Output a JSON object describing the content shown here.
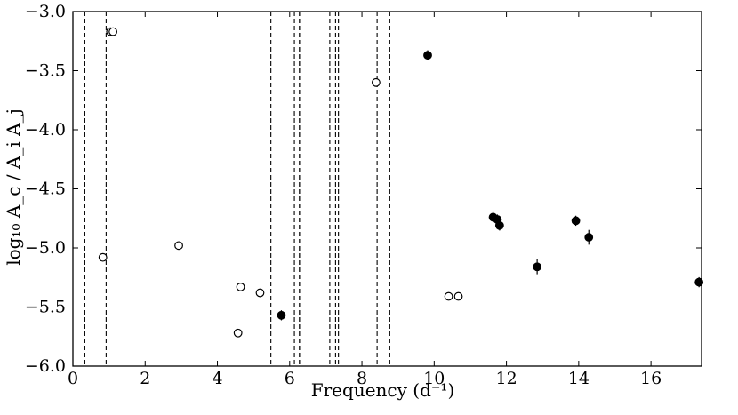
{
  "chart_data": {
    "type": "scatter",
    "title": "",
    "xlabel": "Frequency (d⁻¹)",
    "ylabel": "log₁₀ A_c / A_i A_j",
    "xlim": [
      0,
      17.4
    ],
    "ylim": [
      -6.0,
      -3.0
    ],
    "xticks": [
      0,
      2,
      4,
      6,
      8,
      10,
      12,
      14,
      16
    ],
    "yticks": [
      -3.0,
      -3.5,
      -4.0,
      -4.5,
      -5.0,
      -5.5,
      -6.0
    ],
    "xtick_labels": [
      "0",
      "2",
      "4",
      "6",
      "8",
      "10",
      "12",
      "14",
      "16"
    ],
    "ytick_labels": [
      "−3.0",
      "−3.5",
      "−4.0",
      "−4.5",
      "−5.0",
      "−5.5",
      "−6.0"
    ],
    "grid": false,
    "vertical_lines": [
      0.33,
      0.92,
      5.48,
      6.13,
      6.27,
      6.31,
      7.11,
      7.27,
      7.35,
      8.42,
      8.77
    ],
    "series": [
      {
        "marker": "open-circle",
        "points": [
          {
            "x": 0.83,
            "y": -5.08
          },
          {
            "x": 1.04,
            "y": -3.17
          },
          {
            "x": 1.11,
            "y": -3.17
          },
          {
            "x": 2.93,
            "y": -4.98
          },
          {
            "x": 4.57,
            "y": -5.72
          },
          {
            "x": 4.64,
            "y": -5.33
          },
          {
            "x": 5.18,
            "y": -5.38
          },
          {
            "x": 8.39,
            "y": -3.6
          },
          {
            "x": 10.4,
            "y": -5.41
          },
          {
            "x": 10.67,
            "y": -5.41
          }
        ]
      },
      {
        "marker": "filled-circle",
        "points": [
          {
            "x": 5.77,
            "y": -5.57,
            "err": 0.02
          },
          {
            "x": 9.82,
            "y": -3.37,
            "err": 0.02
          },
          {
            "x": 11.63,
            "y": -4.74,
            "err": 0.02
          },
          {
            "x": 11.75,
            "y": -4.76,
            "err": 0.02
          },
          {
            "x": 11.81,
            "y": -4.81,
            "err": 0.02
          },
          {
            "x": 12.85,
            "y": -5.16,
            "err": 0.04
          },
          {
            "x": 13.92,
            "y": -4.77,
            "err": 0.02
          },
          {
            "x": 14.28,
            "y": -4.91,
            "err": 0.04
          },
          {
            "x": 17.33,
            "y": -5.29,
            "err": 0.02
          }
        ]
      }
    ]
  }
}
